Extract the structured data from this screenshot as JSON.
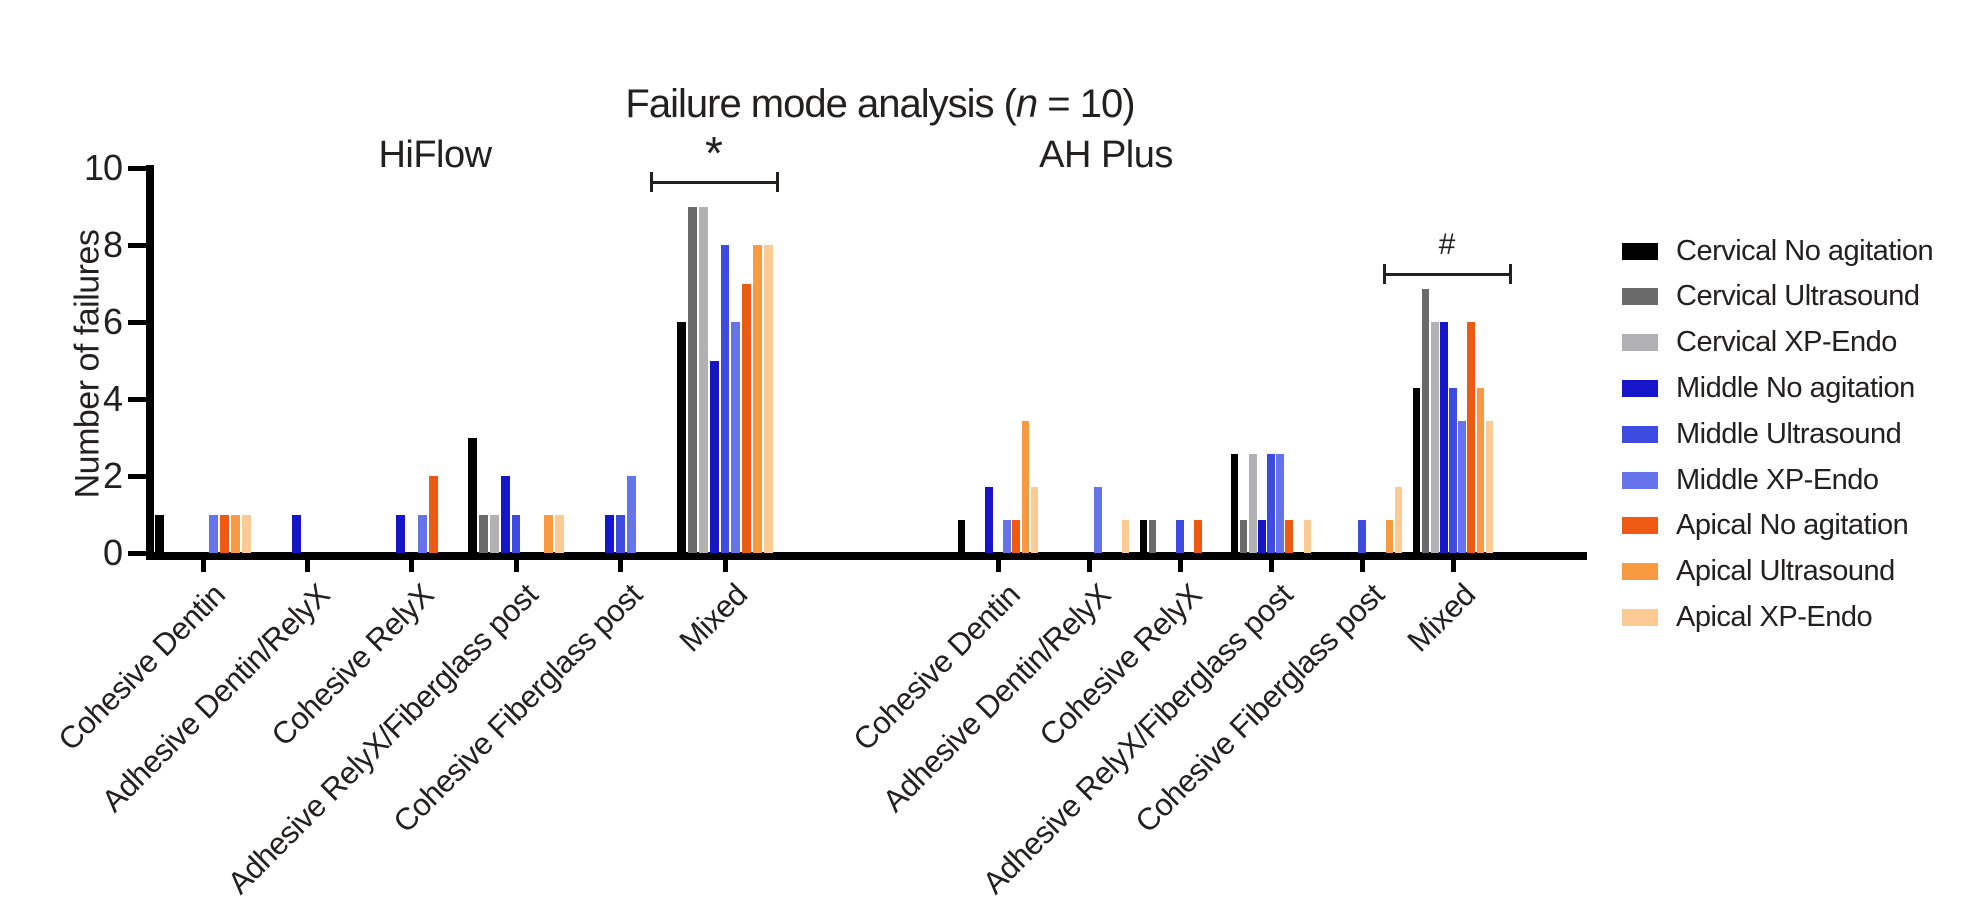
{
  "title": {
    "prefix": "Failure mode analysis (",
    "n_var": "n",
    "suffix": " = 10)"
  },
  "chart_data": {
    "type": "bar",
    "title": "Failure mode analysis (n = 10)",
    "ylabel": "Number of failures",
    "xlabel": "",
    "ylim": [
      0,
      10
    ],
    "yticks": [
      0,
      2,
      4,
      6,
      8,
      10
    ],
    "grid": false,
    "legend_position": "right",
    "note_right_panel_drawn_smaller": true,
    "categories": [
      "Cohesive Dentin",
      "Adhesive Dentin/RelyX",
      "Cohesive RelyX",
      "Adhesive RelyX/Fiberglass post",
      "Cohesive Fiberglass post",
      "Mixed"
    ],
    "panels": [
      {
        "label": "HiFlow",
        "annotation": "*",
        "series": [
          {
            "name": "Cervical No agitation",
            "values": [
              1,
              0,
              0,
              3,
              0,
              6
            ]
          },
          {
            "name": "Cervical Ultrasound",
            "values": [
              0,
              0,
              0,
              1,
              0,
              9
            ]
          },
          {
            "name": "Cervical XP-Endo",
            "values": [
              0,
              0,
              0,
              1,
              0,
              9
            ]
          },
          {
            "name": "Middle No agitation",
            "values": [
              0,
              1,
              1,
              2,
              1,
              5
            ]
          },
          {
            "name": "Middle Ultrasound",
            "values": [
              0,
              0,
              0,
              1,
              1,
              8
            ]
          },
          {
            "name": "Middle XP-Endo",
            "values": [
              1,
              0,
              1,
              0,
              2,
              6
            ]
          },
          {
            "name": "Apical No agitation",
            "values": [
              1,
              0,
              2,
              0,
              0,
              7
            ]
          },
          {
            "name": "Apical Ultrasound",
            "values": [
              1,
              0,
              0,
              1,
              0,
              8
            ]
          },
          {
            "name": "Apical XP-Endo",
            "values": [
              1,
              0,
              0,
              1,
              0,
              8
            ]
          }
        ]
      },
      {
        "label": "AH Plus",
        "annotation": "#",
        "series": [
          {
            "name": "Cervical No agitation",
            "values": [
              1,
              0,
              1,
              3,
              0,
              5
            ]
          },
          {
            "name": "Cervical Ultrasound",
            "values": [
              0,
              0,
              1,
              1,
              0,
              8
            ]
          },
          {
            "name": "Cervical XP-Endo",
            "values": [
              0,
              0,
              0,
              3,
              0,
              7
            ]
          },
          {
            "name": "Middle No agitation",
            "values": [
              2,
              0,
              0,
              1,
              0,
              7
            ]
          },
          {
            "name": "Middle Ultrasound",
            "values": [
              0,
              0,
              1,
              3,
              1,
              5
            ]
          },
          {
            "name": "Middle XP-Endo",
            "values": [
              1,
              2,
              0,
              3,
              0,
              4
            ]
          },
          {
            "name": "Apical No agitation",
            "values": [
              1,
              0,
              1,
              1,
              0,
              7
            ]
          },
          {
            "name": "Apical Ultrasound",
            "values": [
              4,
              0,
              0,
              0,
              1,
              5
            ]
          },
          {
            "name": "Apical XP-Endo",
            "values": [
              2,
              1,
              0,
              1,
              2,
              4
            ]
          }
        ]
      }
    ]
  },
  "series": [
    {
      "name": "Cervical No agitation",
      "color": "#000000"
    },
    {
      "name": "Cervical Ultrasound",
      "color": "#6a6a6a"
    },
    {
      "name": "Cervical XP-Endo",
      "color": "#b1b1b3"
    },
    {
      "name": "Middle No agitation",
      "color": "#1515c9"
    },
    {
      "name": "Middle Ultrasound",
      "color": "#3e4be1"
    },
    {
      "name": "Middle XP-Endo",
      "color": "#6574ea"
    },
    {
      "name": "Apical No agitation",
      "color": "#ef5a13"
    },
    {
      "name": "Apical Ultrasound",
      "color": "#f89a40"
    },
    {
      "name": "Apical XP-Endo",
      "color": "#fcca92"
    }
  ],
  "colors": {
    "axis": "#000000",
    "text": "#232020",
    "background": "#ffffff"
  }
}
